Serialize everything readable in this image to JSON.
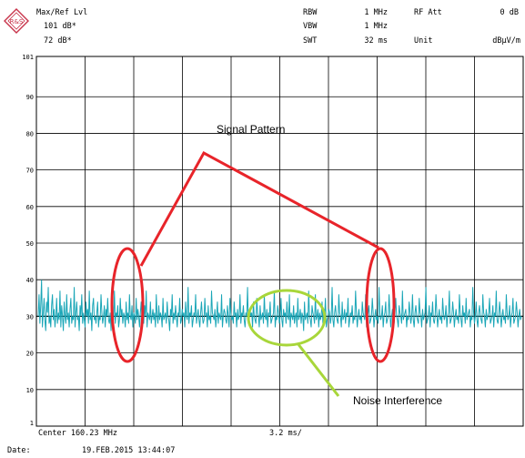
{
  "header": {
    "logo": "R&S",
    "mode_label": "Max/Ref Lvl",
    "max_level": "101 dB*",
    "ref_level": "72 dB*",
    "rbw_label": "RBW",
    "rbw_value": "1 MHz",
    "vbw_label": "VBW",
    "vbw_value": "1 MHz",
    "swt_label": "SWT",
    "swt_value": "32 ms",
    "rf_att_label": "RF Att",
    "rf_att_value": "0 dB",
    "unit_label": "Unit",
    "unit_value": "dBµV/m"
  },
  "footer": {
    "center": "Center 160.23 MHz",
    "span": "3.2 ms/",
    "date_label": "Date:",
    "date_value": "19.FEB.2015  13:44:07"
  },
  "annotations": {
    "signal_pattern": "Signal Pattern",
    "noise_interference": "Noise Interference"
  },
  "colors": {
    "trace": "#1aa6b7",
    "ref_line": "#000000",
    "signal_mark": "#e8242a",
    "noise_mark": "#a8d63a",
    "grid": "#000000"
  },
  "chart_data": {
    "type": "line",
    "ylim": [
      0,
      101
    ],
    "x_divisions": 10,
    "y_tick_labels": [
      "101",
      "90",
      "80",
      "70",
      "60",
      "50",
      "40",
      "30",
      "20",
      "10",
      "1"
    ],
    "reference_level": 30,
    "series": [
      {
        "values": [
          30,
          36,
          28,
          33,
          40,
          27,
          31,
          35,
          29,
          26,
          34,
          31,
          38,
          28,
          30,
          27,
          33,
          36,
          29,
          32,
          27,
          30,
          35,
          28,
          31,
          29,
          37,
          27,
          33,
          30,
          26,
          34,
          30,
          28,
          36,
          29,
          31,
          27,
          32,
          35,
          28,
          30,
          29,
          38,
          27,
          31,
          34,
          29,
          30,
          26,
          33,
          30,
          36,
          28,
          31,
          29,
          27,
          34,
          30,
          32,
          28,
          37,
          29,
          31,
          26,
          33,
          35,
          29,
          30,
          28,
          31,
          34,
          27,
          30,
          29,
          36,
          31,
          28,
          30,
          33,
          27,
          32,
          30,
          35,
          29,
          28,
          31,
          26,
          34,
          30,
          29,
          37,
          28,
          31,
          30,
          33,
          27,
          29,
          35,
          30,
          32,
          28,
          31,
          30,
          27,
          34,
          29,
          31,
          28,
          36,
          30,
          29,
          33,
          27,
          31,
          30,
          28,
          35,
          29,
          32,
          30,
          27,
          31,
          34,
          29,
          30,
          28,
          33,
          30,
          37,
          27,
          31,
          30,
          29,
          34,
          28,
          30,
          32,
          29,
          31,
          27,
          36,
          30,
          28,
          33,
          29,
          31,
          30,
          27,
          35,
          29,
          30,
          31,
          28,
          34,
          30,
          29,
          26,
          32,
          30,
          36,
          28,
          31,
          29,
          33,
          30,
          27,
          31,
          30,
          35,
          28,
          29,
          32,
          30,
          31,
          27,
          34,
          30,
          29,
          38,
          28,
          31,
          30,
          33,
          27,
          29,
          31,
          30,
          36,
          28,
          30,
          32,
          29,
          27,
          31,
          34,
          30,
          28,
          29,
          35,
          30,
          31,
          27,
          33,
          29,
          30,
          28,
          37,
          31,
          30,
          29,
          32,
          27,
          30,
          34,
          28,
          31,
          30,
          29,
          36,
          27,
          30,
          32,
          31,
          29,
          28,
          33,
          30,
          27,
          35,
          31,
          29,
          30,
          28,
          34,
          30,
          31,
          27,
          32,
          29,
          30,
          36,
          28,
          31,
          30,
          33,
          29,
          27,
          31,
          30,
          38,
          28,
          29,
          32,
          30,
          31,
          27,
          34,
          30,
          29,
          28,
          35,
          31,
          30,
          27,
          33,
          29,
          30,
          31,
          28,
          36,
          30,
          29,
          32,
          27,
          31,
          30,
          34,
          28,
          29,
          30,
          31,
          37,
          27,
          30,
          29,
          33,
          31,
          28,
          30,
          35,
          29,
          27,
          32,
          30,
          31,
          28,
          34,
          30,
          29,
          36,
          27,
          31,
          30,
          29,
          33,
          28,
          30,
          31,
          27,
          35,
          29,
          30,
          32,
          28,
          31,
          30,
          26,
          34,
          29,
          30,
          31,
          28,
          37,
          30,
          29,
          27,
          33,
          31,
          30,
          28,
          36,
          29,
          30,
          32,
          27,
          31,
          29,
          30,
          34,
          28,
          31,
          30,
          35,
          27,
          29,
          30,
          32,
          31,
          28,
          30,
          38,
          29,
          27,
          31,
          33,
          30,
          29,
          28,
          36,
          31,
          30,
          27,
          34,
          29,
          30,
          32,
          28,
          31,
          30,
          35,
          27,
          29,
          31,
          30,
          33,
          28,
          30,
          29,
          37,
          31,
          27,
          30,
          32,
          29,
          30,
          28,
          34,
          31,
          30,
          29,
          36,
          27,
          30,
          31,
          33,
          28,
          29,
          30,
          35,
          31,
          27,
          30,
          32,
          29,
          30,
          28,
          38,
          31,
          29,
          30,
          33,
          27,
          30,
          31,
          34,
          28,
          29,
          30,
          36,
          31,
          27,
          30,
          32,
          29,
          28,
          31,
          35,
          30,
          29,
          27,
          33,
          31,
          30,
          28,
          37,
          29,
          30,
          31,
          32,
          27,
          30,
          29,
          34,
          31,
          28,
          30,
          36,
          29,
          27,
          31,
          33,
          30,
          29,
          28,
          35,
          31,
          30,
          27,
          32,
          29,
          30,
          31,
          38,
          28,
          29,
          30,
          33,
          27,
          31,
          30,
          34,
          29,
          28,
          30,
          36,
          31,
          27,
          30,
          32,
          29,
          30,
          28,
          35,
          31,
          29,
          30,
          33,
          27,
          30,
          31,
          37,
          28,
          29,
          30,
          34,
          31,
          27,
          30,
          32,
          29,
          30,
          28,
          36,
          31,
          29,
          27,
          33,
          30,
          31,
          28,
          35,
          29,
          30,
          31,
          32,
          27,
          30,
          29,
          38,
          31,
          28,
          30,
          34,
          29,
          27,
          31,
          33,
          30,
          29,
          28,
          36,
          31,
          30,
          27,
          32,
          29,
          30,
          31,
          35,
          28,
          29,
          30,
          33,
          27,
          31,
          30,
          37,
          29,
          28,
          30,
          34,
          31,
          27,
          30,
          32,
          29,
          30,
          28,
          36,
          31,
          29,
          30,
          33,
          27,
          30,
          31,
          35,
          28,
          29,
          30,
          34,
          31,
          27,
          30,
          32,
          29,
          30
        ]
      }
    ]
  }
}
